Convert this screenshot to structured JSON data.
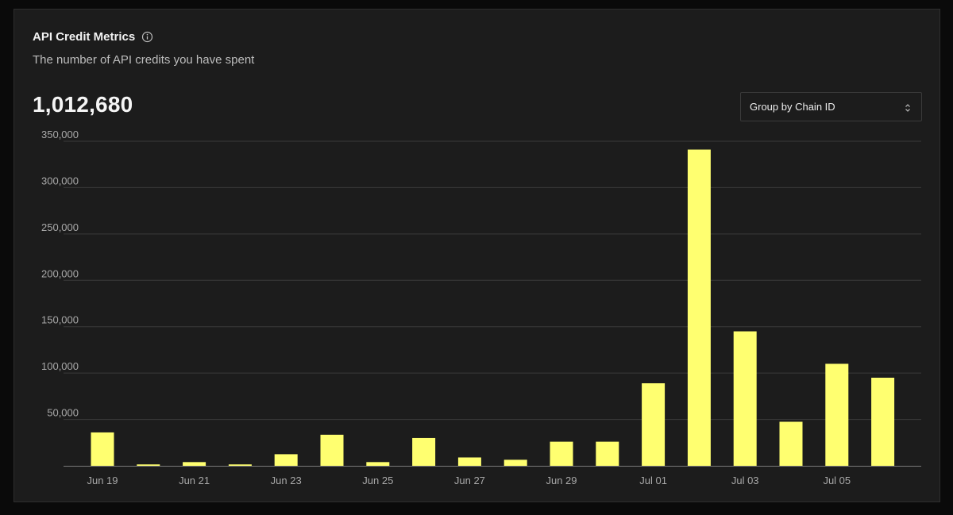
{
  "card": {
    "title": "API Credit Metrics",
    "subtitle": "The number of API credits you have spent",
    "total": "1,012,680",
    "group_select": {
      "selected": "Group by Chain ID"
    },
    "icons": {
      "info": "info-icon",
      "select": "chevron-up-down-icon"
    }
  },
  "chart_data": {
    "type": "bar",
    "title": "",
    "xlabel": "",
    "ylabel": "",
    "ylim": [
      0,
      350000
    ],
    "y_ticks": [
      50000,
      100000,
      150000,
      200000,
      250000,
      300000,
      350000
    ],
    "y_tick_labels": [
      "50,000",
      "100,000",
      "150,000",
      "200,000",
      "250,000",
      "300,000",
      "350,000"
    ],
    "categories": [
      "Jun 19",
      "Jun 20",
      "Jun 21",
      "Jun 22",
      "Jun 23",
      "Jun 24",
      "Jun 25",
      "Jun 26",
      "Jun 27",
      "Jun 28",
      "Jun 29",
      "Jun 30",
      "Jul 01",
      "Jul 02",
      "Jul 03",
      "Jul 04",
      "Jul 05",
      "Jul 06"
    ],
    "x_tick_labels": [
      "Jun 19",
      "Jun 21",
      "Jun 23",
      "Jun 25",
      "Jun 27",
      "Jun 29",
      "Jul 01",
      "Jul 03",
      "Jul 05"
    ],
    "values": [
      36000,
      1500,
      4000,
      1500,
      12500,
      33500,
      4000,
      30000,
      9000,
      6500,
      26000,
      26000,
      89000,
      341000,
      145000,
      47500,
      110000,
      95000
    ],
    "grid": true,
    "bar_color": "#ffff70",
    "grid_color": "#3a3a3a",
    "axis_color": "#7a7a7a"
  }
}
